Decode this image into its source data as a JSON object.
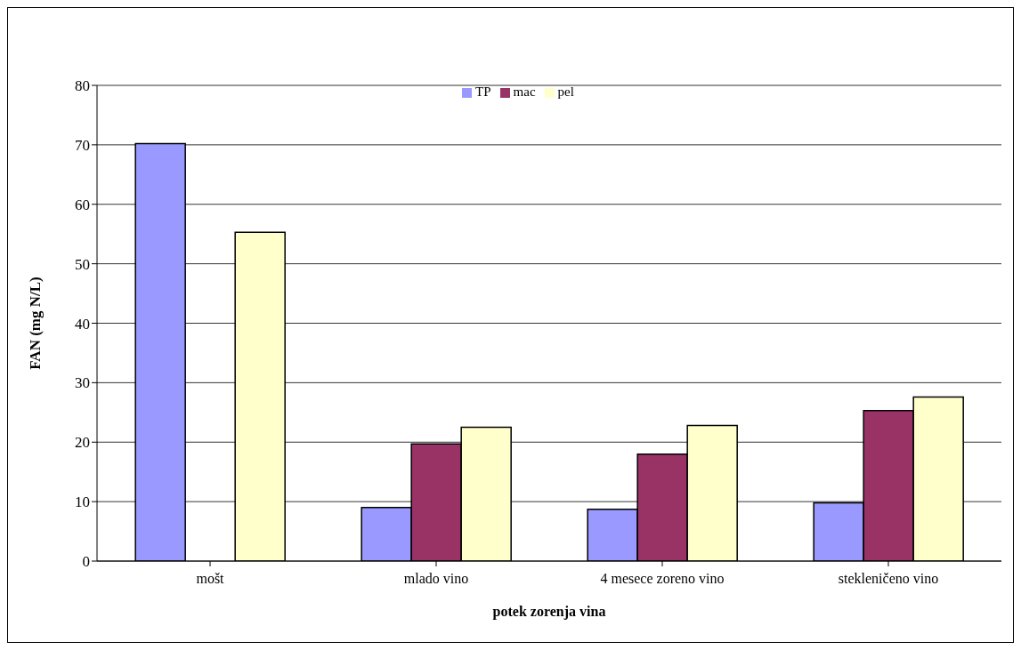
{
  "chart_data": {
    "type": "bar",
    "xlabel": "potek zorenja vina",
    "ylabel": "FAN (mg N/L)",
    "categories": [
      "mošt",
      "mlado vino",
      "4 mesece zoreno vino",
      "stekleničeno vino"
    ],
    "series": [
      {
        "name": "TP",
        "color": "#9999ff",
        "values": [
          70.2,
          9.0,
          8.7,
          9.8
        ]
      },
      {
        "name": "mac",
        "color": "#993366",
        "values": [
          null,
          19.7,
          18.0,
          25.3
        ]
      },
      {
        "name": "pel",
        "color": "#ffffcc",
        "values": [
          55.3,
          22.5,
          22.8,
          27.6
        ]
      }
    ],
    "ylim": [
      0,
      80
    ],
    "yticks": [
      0,
      10,
      20,
      30,
      40,
      50,
      60,
      70,
      80
    ],
    "grid": "y",
    "legend": "top"
  }
}
